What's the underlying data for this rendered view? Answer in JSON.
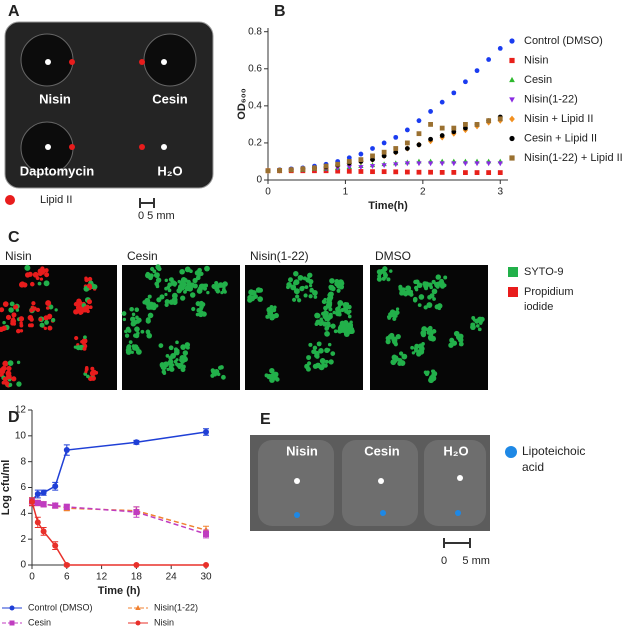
{
  "panel_a": {
    "label": "A",
    "wells": [
      "Nisin",
      "Cesin",
      "Daptomycin",
      "H₂O"
    ],
    "legend": "Lipid II",
    "scale": "0  5 mm"
  },
  "panel_c": {
    "label": "C",
    "images": [
      "Nisin",
      "Cesin",
      "Nisin(1-22)",
      "DMSO"
    ],
    "legend": [
      {
        "name": [
          "SYTO-9"
        ],
        "color": "#22b04a"
      },
      {
        "name": [
          "Propidium",
          "iodide"
        ],
        "color": "#e81c1c"
      }
    ]
  },
  "panel_e": {
    "label": "E",
    "wells": [
      "Nisin",
      "Cesin",
      "H₂O"
    ],
    "legend": [
      "Lipoteichoic",
      "acid"
    ],
    "scale": "0     5 mm"
  },
  "chart_data": [
    {
      "panel": "B",
      "type": "scatter",
      "xlabel": "Time(h)",
      "ylabel": "OD₆₀₀",
      "x": [
        0,
        0.15,
        0.3,
        0.45,
        0.6,
        0.75,
        0.9,
        1.05,
        1.2,
        1.35,
        1.5,
        1.65,
        1.8,
        1.95,
        2.1,
        2.25,
        2.4,
        2.55,
        2.7,
        2.85,
        3.0
      ],
      "xlim": [
        0,
        3.1
      ],
      "xticks": [
        0,
        1,
        2,
        3
      ],
      "ylim": [
        0,
        0.82
      ],
      "yticks": [
        0,
        0.2,
        0.4,
        0.6,
        0.8
      ],
      "series": [
        {
          "name": "Control (DMSO)",
          "color": "#1a3cf0",
          "marker": "circle",
          "values": [
            0.05,
            0.055,
            0.06,
            0.065,
            0.075,
            0.085,
            0.1,
            0.12,
            0.14,
            0.17,
            0.2,
            0.23,
            0.27,
            0.32,
            0.37,
            0.42,
            0.47,
            0.53,
            0.59,
            0.65,
            0.71
          ]
        },
        {
          "name": "Nisin",
          "color": "#e8201a",
          "marker": "square",
          "values": [
            0.05,
            0.05,
            0.05,
            0.05,
            0.05,
            0.05,
            0.048,
            0.047,
            0.046,
            0.045,
            0.045,
            0.044,
            0.043,
            0.042,
            0.042,
            0.041,
            0.041,
            0.04,
            0.04,
            0.04,
            0.04
          ]
        },
        {
          "name": "Cesin",
          "color": "#2db82d",
          "marker": "triangle",
          "values": [
            0.05,
            0.05,
            0.055,
            0.055,
            0.06,
            0.06,
            0.065,
            0.07,
            0.075,
            0.08,
            0.085,
            0.09,
            0.095,
            0.1,
            0.1,
            0.1,
            0.1,
            0.1,
            0.1,
            0.1,
            0.1
          ]
        },
        {
          "name": "Nisin(1-22)",
          "color": "#8a2be2",
          "marker": "triangle-down",
          "values": [
            0.05,
            0.05,
            0.055,
            0.055,
            0.06,
            0.06,
            0.065,
            0.07,
            0.07,
            0.075,
            0.08,
            0.085,
            0.09,
            0.09,
            0.09,
            0.09,
            0.09,
            0.09,
            0.09,
            0.09,
            0.09
          ]
        },
        {
          "name": "Nisin + Lipid II",
          "color": "#f29020",
          "marker": "diamond",
          "values": [
            0.05,
            0.052,
            0.055,
            0.06,
            0.065,
            0.07,
            0.08,
            0.09,
            0.1,
            0.11,
            0.13,
            0.15,
            0.17,
            0.19,
            0.21,
            0.23,
            0.25,
            0.27,
            0.29,
            0.31,
            0.32
          ]
        },
        {
          "name": "Cesin + Lipid II",
          "color": "#000000",
          "marker": "circle",
          "values": [
            0.05,
            0.052,
            0.055,
            0.06,
            0.065,
            0.07,
            0.08,
            0.09,
            0.1,
            0.11,
            0.13,
            0.15,
            0.17,
            0.19,
            0.22,
            0.24,
            0.26,
            0.28,
            0.3,
            0.32,
            0.34
          ]
        },
        {
          "name": "Nisin(1-22) + Lipid II",
          "color": "#9a7030",
          "marker": "square",
          "values": [
            0.05,
            0.052,
            0.055,
            0.06,
            0.065,
            0.075,
            0.085,
            0.1,
            0.11,
            0.13,
            0.15,
            0.17,
            0.2,
            0.25,
            0.3,
            0.28,
            0.28,
            0.3,
            0.3,
            0.32,
            0.33
          ]
        }
      ]
    },
    {
      "panel": "D",
      "type": "line",
      "xlabel": "Time (h)",
      "ylabel": "Log cfu/ml",
      "x": [
        0,
        1,
        2,
        4,
        6,
        18,
        30
      ],
      "xlim": [
        0,
        30
      ],
      "xticks": [
        0,
        6,
        12,
        18,
        24,
        30
      ],
      "ylim": [
        0,
        12
      ],
      "yticks": [
        0,
        2,
        4,
        6,
        8,
        10,
        12
      ],
      "series": [
        {
          "name": "Control (DMSO)",
          "color": "#1f3fd6",
          "marker": "circle",
          "dashed": false,
          "values": [
            5.0,
            5.5,
            5.6,
            6.1,
            8.9,
            9.5,
            10.3
          ],
          "errors": [
            0.2,
            0.3,
            0.2,
            0.3,
            0.4,
            0.15,
            0.25
          ]
        },
        {
          "name": "Nisin(1-22)",
          "color": "#f08030",
          "marker": "triangle",
          "dashed": true,
          "values": [
            4.9,
            4.8,
            4.7,
            4.6,
            4.4,
            4.2,
            2.7
          ],
          "errors": [
            0.3,
            0.2,
            0.2,
            0.2,
            0.2,
            0.3,
            0.3
          ]
        },
        {
          "name": "Cesin",
          "color": "#c03cc0",
          "marker": "square",
          "dashed": true,
          "values": [
            4.9,
            4.8,
            4.7,
            4.6,
            4.5,
            4.1,
            2.4
          ],
          "errors": [
            0.3,
            0.2,
            0.2,
            0.2,
            0.2,
            0.4,
            0.3
          ]
        },
        {
          "name": "Nisin",
          "color": "#e8302a",
          "marker": "circle",
          "dashed": false,
          "values": [
            4.9,
            3.3,
            2.6,
            1.5,
            0,
            0,
            0
          ],
          "errors": [
            0.3,
            0.4,
            0.3,
            0.3,
            0.1,
            0,
            0
          ]
        }
      ]
    }
  ]
}
